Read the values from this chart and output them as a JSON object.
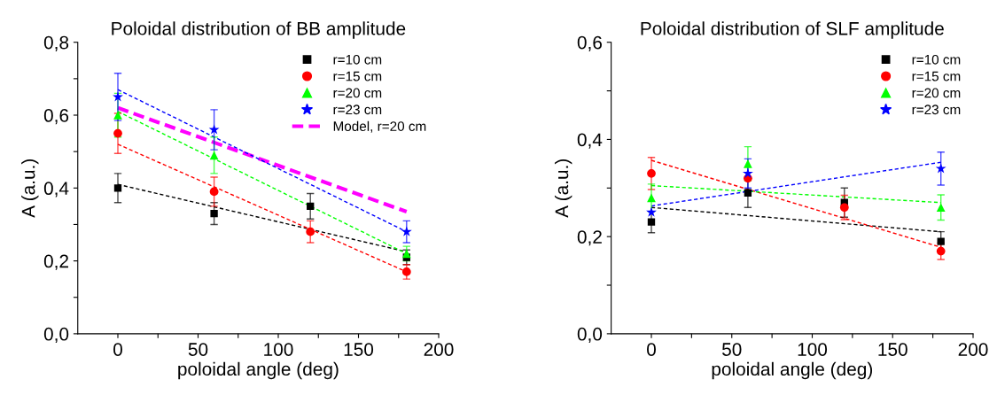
{
  "chart_data": [
    {
      "type": "scatter",
      "title": "Poloidal distribution of BB amplitude",
      "xlabel": "poloidal angle (deg)",
      "ylabel": "A (a.u.)",
      "xlim": [
        -25,
        200
      ],
      "xticks": [
        0,
        {
          "value": 25,
          "label": null
        },
        50,
        {
          "value": 75,
          "label": null
        },
        100,
        {
          "value": 125,
          "label": null
        },
        150,
        {
          "value": 175,
          "label": null
        },
        200
      ],
      "ylim": [
        0,
        0.8
      ],
      "yticks": [
        {
          "value": 0,
          "label": "0,0"
        },
        {
          "value": 0.1,
          "label": null
        },
        {
          "value": 0.2,
          "label": "0,2"
        },
        {
          "value": 0.3,
          "label": null
        },
        {
          "value": 0.4,
          "label": "0,4"
        },
        {
          "value": 0.5,
          "label": null
        },
        {
          "value": 0.6,
          "label": "0,6"
        },
        {
          "value": 0.7,
          "label": null
        },
        {
          "value": 0.8,
          "label": "0,8"
        }
      ],
      "grid": false,
      "legend": "top right",
      "series": [
        {
          "name": "r=10 cm",
          "color": "#000000",
          "marker": "square",
          "x": [
            0,
            60,
            120,
            180
          ],
          "values": [
            0.4,
            0.33,
            0.35,
            0.21
          ],
          "errors": [
            0.04,
            0.03,
            0.035,
            0.02
          ]
        },
        {
          "name": "r=15 cm",
          "color": "#ff0000",
          "marker": "circle",
          "x": [
            0,
            60,
            120,
            180
          ],
          "values": [
            0.55,
            0.39,
            0.28,
            0.17
          ],
          "errors": [
            0.055,
            0.04,
            0.03,
            0.02
          ]
        },
        {
          "name": "r=20 cm",
          "color": "#00ff00",
          "marker": "triangle",
          "x": [
            0,
            60,
            120,
            180
          ],
          "values": [
            0.6,
            0.49,
            null,
            0.22
          ],
          "errors": [
            0.06,
            0.05,
            null,
            0.02
          ]
        },
        {
          "name": "r=23 cm",
          "color": "#0000ff",
          "marker": "star",
          "x": [
            0,
            60,
            120,
            180
          ],
          "values": [
            0.65,
            0.56,
            null,
            0.28
          ],
          "errors": [
            0.065,
            0.055,
            null,
            0.03
          ]
        },
        {
          "name": "Model, r=20 cm",
          "type": "line",
          "color": "#ff00ff",
          "line_style": "dashed",
          "x": [
            0,
            180
          ],
          "values": [
            0.62,
            0.335
          ]
        },
        {
          "type": "line",
          "color": "#000000",
          "line_style": "dashed",
          "x": [
            0,
            180
          ],
          "values": [
            0.41,
            0.225
          ]
        },
        {
          "type": "line",
          "color": "#ff0000",
          "line_style": "dashed",
          "x": [
            0,
            180
          ],
          "values": [
            0.52,
            0.17
          ]
        },
        {
          "type": "line",
          "color": "#00ff00",
          "line_style": "dashed",
          "x": [
            0,
            180
          ],
          "values": [
            0.61,
            0.22
          ]
        },
        {
          "type": "line",
          "color": "#0000ff",
          "line_style": "dashed",
          "x": [
            0,
            180
          ],
          "values": [
            0.67,
            0.28
          ]
        }
      ]
    },
    {
      "type": "scatter",
      "title": "Poloidal distribution of SLF amplitude",
      "xlabel": "poloidal angle (deg)",
      "ylabel": "A (a.u.)",
      "xlim": [
        -25,
        200
      ],
      "xticks": [
        0,
        {
          "value": 25,
          "label": null
        },
        50,
        {
          "value": 75,
          "label": null
        },
        100,
        {
          "value": 125,
          "label": null
        },
        150,
        {
          "value": 175,
          "label": null
        },
        200
      ],
      "ylim": [
        0,
        0.6
      ],
      "yticks": [
        {
          "value": 0,
          "label": "0,0"
        },
        {
          "value": 0.1,
          "label": null
        },
        {
          "value": 0.2,
          "label": "0,2"
        },
        {
          "value": 0.3,
          "label": null
        },
        {
          "value": 0.4,
          "label": "0,4"
        },
        {
          "value": 0.5,
          "label": null
        },
        {
          "value": 0.6,
          "label": "0,6"
        }
      ],
      "grid": false,
      "legend": "top right",
      "series": [
        {
          "name": "r=10 cm",
          "color": "#000000",
          "marker": "square",
          "x": [
            0,
            60,
            120,
            180
          ],
          "values": [
            0.23,
            0.29,
            0.27,
            0.19
          ],
          "errors": [
            0.022,
            0.03,
            0.03,
            0.02
          ]
        },
        {
          "name": "r=15 cm",
          "color": "#ff0000",
          "marker": "circle",
          "x": [
            0,
            60,
            120,
            180
          ],
          "values": [
            0.33,
            0.32,
            0.26,
            0.17
          ],
          "errors": [
            0.033,
            null,
            0.025,
            0.017
          ]
        },
        {
          "name": "r=20 cm",
          "color": "#00ff00",
          "marker": "triangle",
          "x": [
            0,
            60,
            120,
            180
          ],
          "values": [
            0.28,
            0.35,
            null,
            0.26
          ],
          "errors": [
            0.028,
            0.035,
            null,
            0.026
          ]
        },
        {
          "name": "r=23 cm",
          "color": "#0000ff",
          "marker": "star",
          "x": [
            0,
            60,
            120,
            180
          ],
          "values": [
            0.25,
            0.33,
            null,
            0.34
          ],
          "errors": [
            null,
            0.03,
            null,
            0.034
          ]
        },
        {
          "type": "line",
          "color": "#000000",
          "line_style": "dashed",
          "x": [
            0,
            180
          ],
          "values": [
            0.26,
            0.21
          ]
        },
        {
          "type": "line",
          "color": "#ff0000",
          "line_style": "dashed",
          "x": [
            0,
            180
          ],
          "values": [
            0.357,
            0.178
          ]
        },
        {
          "type": "line",
          "color": "#00ff00",
          "line_style": "dashed",
          "x": [
            0,
            180
          ],
          "values": [
            0.305,
            0.27
          ]
        },
        {
          "type": "line",
          "color": "#0000ff",
          "line_style": "dashed",
          "x": [
            0,
            180
          ],
          "values": [
            0.263,
            0.353
          ]
        }
      ]
    }
  ]
}
